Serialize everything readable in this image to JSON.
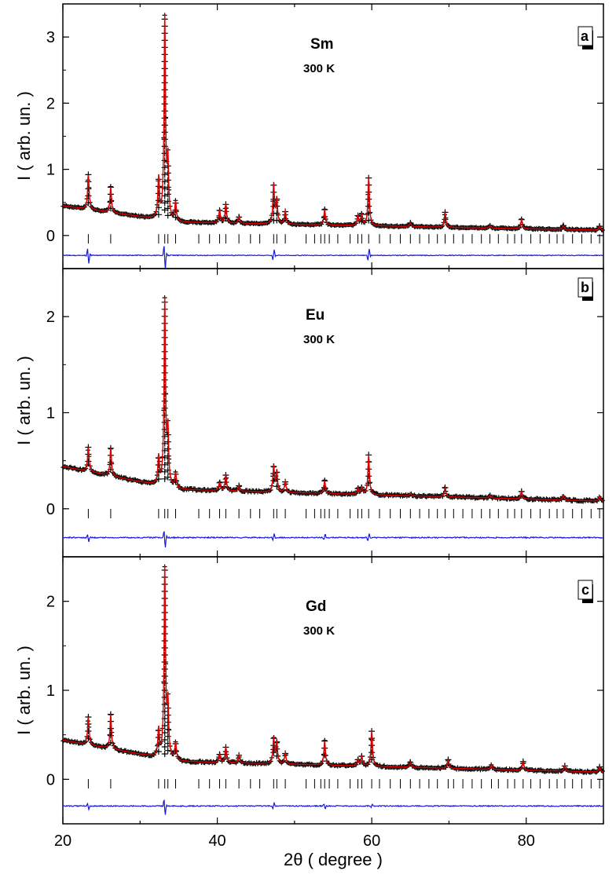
{
  "colors": {
    "observed": "#000000",
    "calculated": "#e00000",
    "difference": "#1a1adb",
    "bragg_ticks": "#000000"
  },
  "chart_data": [
    {
      "panel": "a",
      "type": "line",
      "sample_label": "Sm",
      "temperature_label": "300 K",
      "xlabel": "2θ ( degree )",
      "ylabel": "I ( arb. un. )",
      "xlim": [
        20,
        90
      ],
      "ylim": [
        -0.5,
        3.5
      ],
      "xticks": [
        20,
        40,
        60,
        80
      ],
      "yticks": [
        0,
        1,
        2,
        3
      ],
      "background": {
        "y_at_20": 0.45,
        "y_at_35": 0.2,
        "y_at_90": 0.08
      },
      "peaks": [
        {
          "x": 23.3,
          "y": 0.92
        },
        {
          "x": 26.2,
          "y": 0.73
        },
        {
          "x": 32.4,
          "y": 0.85
        },
        {
          "x": 33.2,
          "y": 3.27
        },
        {
          "x": 33.6,
          "y": 1.05
        },
        {
          "x": 34.6,
          "y": 0.49
        },
        {
          "x": 40.3,
          "y": 0.38
        },
        {
          "x": 41.1,
          "y": 0.47
        },
        {
          "x": 42.8,
          "y": 0.28
        },
        {
          "x": 47.3,
          "y": 0.76
        },
        {
          "x": 47.7,
          "y": 0.55
        },
        {
          "x": 48.8,
          "y": 0.36
        },
        {
          "x": 53.9,
          "y": 0.39
        },
        {
          "x": 58.2,
          "y": 0.3
        },
        {
          "x": 58.7,
          "y": 0.32
        },
        {
          "x": 59.6,
          "y": 0.87
        },
        {
          "x": 65.0,
          "y": 0.19
        },
        {
          "x": 69.5,
          "y": 0.35
        },
        {
          "x": 75.3,
          "y": 0.15
        },
        {
          "x": 79.4,
          "y": 0.24
        },
        {
          "x": 84.8,
          "y": 0.15
        },
        {
          "x": 89.5,
          "y": 0.14
        }
      ],
      "difference_offset": -0.3,
      "difference_features": [
        {
          "x": 23.3,
          "amp": -0.15
        },
        {
          "x": 33.2,
          "amp": -0.25
        },
        {
          "x": 47.3,
          "amp": 0.1
        },
        {
          "x": 59.6,
          "amp": 0.12
        }
      ],
      "bragg_tick_y": -0.05,
      "bragg_positions": [
        23.3,
        26.2,
        32.4,
        33.2,
        33.6,
        34.6,
        37.6,
        39.0,
        40.3,
        41.1,
        42.8,
        44.3,
        45.5,
        47.3,
        47.7,
        48.8,
        51.5,
        52.6,
        53.4,
        53.9,
        54.5,
        55.6,
        57.2,
        58.2,
        58.7,
        59.6,
        61.0,
        62.4,
        63.7,
        65.0,
        66.2,
        67.4,
        68.5,
        69.5,
        70.6,
        71.8,
        73.0,
        74.2,
        75.3,
        76.4,
        77.6,
        78.5,
        79.4,
        80.6,
        81.8,
        83.0,
        84.0,
        84.8,
        86.0,
        87.2,
        88.4,
        89.5
      ]
    },
    {
      "panel": "b",
      "type": "line",
      "sample_label": "Eu",
      "temperature_label": "300 K",
      "xlabel": "2θ ( degree )",
      "ylabel": "I ( arb. un. )",
      "xlim": [
        20,
        90
      ],
      "ylim": [
        -0.5,
        2.5
      ],
      "xticks": [
        20,
        40,
        60,
        80
      ],
      "yticks": [
        0,
        1,
        2
      ],
      "background": {
        "y_at_20": 0.44,
        "y_at_35": 0.2,
        "y_at_90": 0.08
      },
      "peaks": [
        {
          "x": 23.3,
          "y": 0.64
        },
        {
          "x": 26.2,
          "y": 0.63
        },
        {
          "x": 32.4,
          "y": 0.53
        },
        {
          "x": 33.2,
          "y": 2.15
        },
        {
          "x": 33.6,
          "y": 0.77
        },
        {
          "x": 34.6,
          "y": 0.36
        },
        {
          "x": 40.3,
          "y": 0.27
        },
        {
          "x": 41.1,
          "y": 0.35
        },
        {
          "x": 42.8,
          "y": 0.24
        },
        {
          "x": 47.3,
          "y": 0.44
        },
        {
          "x": 47.7,
          "y": 0.38
        },
        {
          "x": 48.8,
          "y": 0.28
        },
        {
          "x": 53.9,
          "y": 0.29
        },
        {
          "x": 58.2,
          "y": 0.21
        },
        {
          "x": 58.7,
          "y": 0.22
        },
        {
          "x": 59.6,
          "y": 0.56
        },
        {
          "x": 65.0,
          "y": 0.16
        },
        {
          "x": 69.5,
          "y": 0.22
        },
        {
          "x": 75.3,
          "y": 0.14
        },
        {
          "x": 79.4,
          "y": 0.18
        },
        {
          "x": 84.8,
          "y": 0.14
        },
        {
          "x": 89.5,
          "y": 0.13
        }
      ],
      "difference_offset": -0.3,
      "difference_features": [
        {
          "x": 23.3,
          "amp": -0.05
        },
        {
          "x": 33.2,
          "amp": -0.12
        },
        {
          "x": 47.3,
          "amp": 0.05
        },
        {
          "x": 53.9,
          "amp": 0.04
        },
        {
          "x": 59.6,
          "amp": 0.05
        }
      ],
      "bragg_tick_y": -0.05,
      "bragg_positions": [
        23.3,
        26.2,
        32.4,
        33.2,
        33.6,
        34.6,
        37.6,
        39.0,
        40.3,
        41.1,
        42.8,
        44.3,
        45.5,
        47.3,
        47.7,
        48.8,
        51.5,
        52.6,
        53.4,
        53.9,
        54.5,
        55.6,
        57.2,
        58.2,
        58.7,
        59.6,
        61.0,
        62.4,
        63.7,
        65.0,
        66.2,
        67.4,
        68.5,
        69.5,
        70.6,
        71.8,
        73.0,
        74.2,
        75.3,
        76.4,
        77.6,
        78.5,
        79.4,
        80.6,
        81.8,
        83.0,
        84.0,
        84.8,
        86.0,
        87.2,
        88.4,
        89.5
      ]
    },
    {
      "panel": "c",
      "type": "line",
      "sample_label": "Gd",
      "temperature_label": "300 K",
      "xlabel": "2θ ( degree )",
      "ylabel": "I ( arb. un. )",
      "xlim": [
        20,
        90
      ],
      "ylim": [
        -0.5,
        2.5
      ],
      "xticks": [
        20,
        40,
        60,
        80
      ],
      "yticks": [
        0,
        1,
        2
      ],
      "background": {
        "y_at_20": 0.44,
        "y_at_35": 0.2,
        "y_at_90": 0.08
      },
      "peaks": [
        {
          "x": 23.3,
          "y": 0.7
        },
        {
          "x": 26.2,
          "y": 0.73
        },
        {
          "x": 32.4,
          "y": 0.55
        },
        {
          "x": 33.2,
          "y": 2.35
        },
        {
          "x": 33.6,
          "y": 0.8
        },
        {
          "x": 34.6,
          "y": 0.4
        },
        {
          "x": 40.3,
          "y": 0.28
        },
        {
          "x": 41.1,
          "y": 0.36
        },
        {
          "x": 42.8,
          "y": 0.27
        },
        {
          "x": 47.3,
          "y": 0.46
        },
        {
          "x": 47.7,
          "y": 0.42
        },
        {
          "x": 48.8,
          "y": 0.29
        },
        {
          "x": 53.9,
          "y": 0.43
        },
        {
          "x": 58.2,
          "y": 0.22
        },
        {
          "x": 58.7,
          "y": 0.26
        },
        {
          "x": 60.0,
          "y": 0.54
        },
        {
          "x": 65.0,
          "y": 0.19
        },
        {
          "x": 69.9,
          "y": 0.22
        },
        {
          "x": 75.5,
          "y": 0.16
        },
        {
          "x": 79.6,
          "y": 0.2
        },
        {
          "x": 85.0,
          "y": 0.15
        },
        {
          "x": 89.5,
          "y": 0.14
        }
      ],
      "difference_offset": -0.3,
      "difference_features": [
        {
          "x": 23.3,
          "amp": -0.05
        },
        {
          "x": 33.2,
          "amp": -0.12
        },
        {
          "x": 47.3,
          "amp": 0.05
        },
        {
          "x": 53.9,
          "amp": -0.04
        },
        {
          "x": 60.0,
          "amp": 0.03
        }
      ],
      "bragg_tick_y": -0.05,
      "bragg_positions": [
        23.3,
        26.2,
        32.4,
        33.2,
        33.6,
        34.6,
        37.6,
        39.0,
        40.3,
        41.1,
        42.8,
        44.3,
        45.5,
        47.3,
        47.7,
        48.8,
        51.5,
        52.6,
        53.4,
        53.9,
        54.5,
        55.6,
        57.2,
        58.2,
        58.7,
        60.0,
        61.0,
        62.4,
        63.7,
        65.0,
        66.2,
        67.4,
        68.5,
        69.9,
        70.6,
        71.8,
        73.0,
        74.2,
        75.5,
        76.4,
        77.6,
        78.5,
        79.6,
        80.6,
        81.8,
        83.0,
        84.0,
        85.0,
        86.0,
        87.2,
        88.4,
        89.5
      ]
    }
  ],
  "shared_xlabel": "2θ ( degree )"
}
